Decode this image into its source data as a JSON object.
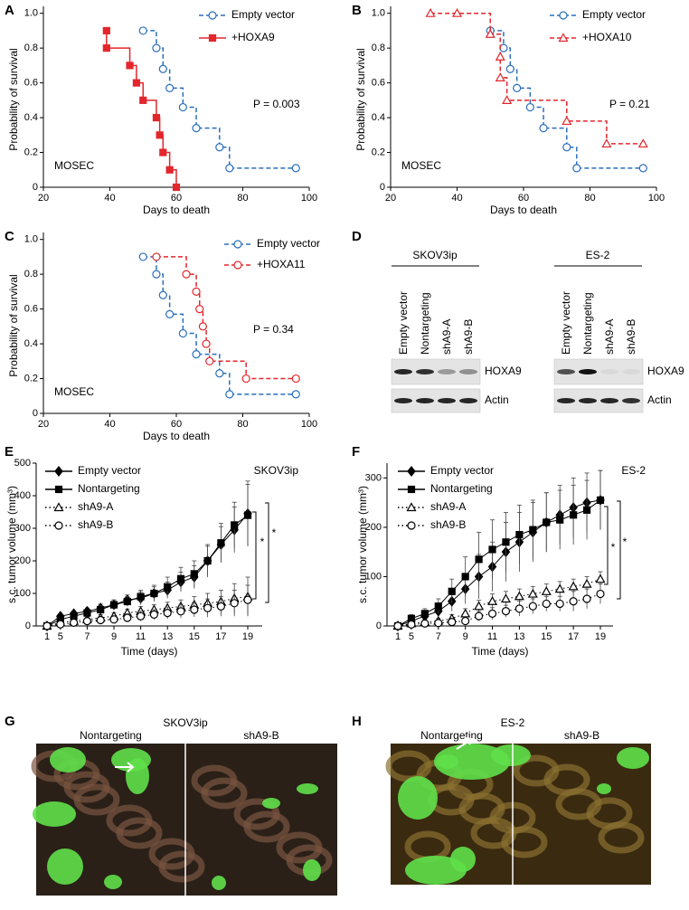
{
  "chart_data": [
    {
      "panel": "A",
      "type": "step",
      "xlabel": "Days to death",
      "ylabel": "Probability of survival",
      "xlim": [
        20,
        100
      ],
      "xticks": [
        20,
        40,
        60,
        80,
        100
      ],
      "ylim": [
        0,
        1.04
      ],
      "yticks": [
        0,
        0.2,
        0.4,
        0.6,
        0.8,
        {
          "value": 1,
          "label": "1.0"
        }
      ],
      "annotations": [
        "MOSEC",
        "P = 0.003"
      ],
      "series": [
        {
          "name": "Empty vector",
          "color": "#2a6ebb",
          "marker": "circle-open",
          "dash": "dashed",
          "x": [
            50,
            54,
            56,
            58,
            62,
            66,
            73,
            76,
            96
          ],
          "values": [
            0.9,
            0.8,
            0.68,
            0.57,
            0.46,
            0.34,
            0.23,
            0.11,
            0.11
          ]
        },
        {
          "name": "+HOXA9",
          "color": "#e3262c",
          "marker": "square",
          "dash": "solid",
          "x": [
            39,
            39,
            46,
            48,
            50,
            54,
            55,
            56,
            58,
            60
          ],
          "values": [
            0.9,
            0.8,
            0.7,
            0.6,
            0.5,
            0.4,
            0.3,
            0.2,
            0.1,
            0
          ]
        }
      ]
    },
    {
      "panel": "B",
      "type": "step",
      "xlabel": "Days to death",
      "ylabel": "Probability of survival",
      "xlim": [
        20,
        100
      ],
      "xticks": [
        20,
        40,
        60,
        80,
        100
      ],
      "ylim": [
        0,
        1.04
      ],
      "yticks": [
        0,
        0.2,
        0.4,
        0.6,
        0.8,
        {
          "value": 1,
          "label": "1.0"
        }
      ],
      "annotations": [
        "MOSEC",
        "P = 0.21"
      ],
      "series": [
        {
          "name": "Empty vector",
          "color": "#2a6ebb",
          "marker": "circle-open",
          "dash": "dashed",
          "x": [
            50,
            54,
            56,
            58,
            62,
            66,
            73,
            76,
            96
          ],
          "values": [
            0.9,
            0.8,
            0.68,
            0.57,
            0.46,
            0.34,
            0.23,
            0.11,
            0.11
          ]
        },
        {
          "name": "+HOXA10",
          "color": "#e3262c",
          "marker": "triangle-open",
          "dash": "dashed",
          "x": [
            32,
            40,
            50,
            53,
            53,
            55,
            73,
            85,
            96
          ],
          "values": [
            1,
            1,
            0.88,
            0.75,
            0.63,
            0.5,
            0.38,
            0.25,
            0.25
          ]
        }
      ]
    },
    {
      "panel": "C",
      "type": "step",
      "xlabel": "Days to death",
      "ylabel": "Probability of survival",
      "xlim": [
        20,
        100
      ],
      "xticks": [
        20,
        40,
        60,
        80,
        100
      ],
      "ylim": [
        0,
        1.04
      ],
      "yticks": [
        0,
        0.2,
        0.4,
        0.6,
        0.8,
        {
          "value": 1,
          "label": "1.0"
        }
      ],
      "annotations": [
        "MOSEC",
        "P = 0.34"
      ],
      "series": [
        {
          "name": "Empty vector",
          "color": "#2a6ebb",
          "marker": "circle-open",
          "dash": "dashed",
          "x": [
            50,
            54,
            56,
            58,
            62,
            66,
            73,
            76,
            96
          ],
          "values": [
            0.9,
            0.8,
            0.68,
            0.57,
            0.46,
            0.34,
            0.23,
            0.11,
            0.11
          ]
        },
        {
          "name": "+HOXA11",
          "color": "#e3262c",
          "marker": "circle-open",
          "dash": "dashed",
          "x": [
            54,
            63,
            66,
            67,
            68,
            69,
            70,
            81,
            96
          ],
          "values": [
            0.9,
            0.8,
            0.7,
            0.6,
            0.5,
            0.4,
            0.3,
            0.2,
            0.2
          ]
        }
      ]
    },
    {
      "panel": "E",
      "type": "line",
      "xlabel": "Time (days)",
      "ylabel": "s.c. tumor volume (mm³)",
      "categories": [
        "1",
        "5",
        null,
        "7",
        null,
        "9",
        null,
        "11",
        null,
        "13",
        null,
        "15",
        null,
        "17",
        null,
        "19"
      ],
      "ylim": [
        0,
        500
      ],
      "yticks": [
        0,
        100,
        200,
        300,
        400,
        500
      ],
      "annotations": [
        "SKOV3ip",
        "*",
        "*"
      ],
      "series": [
        {
          "name": "Empty vector",
          "color": "#000000",
          "marker": "diamond",
          "dash": "solid",
          "values": [
            0,
            30,
            38,
            45,
            55,
            65,
            80,
            85,
            100,
            110,
            135,
            150,
            200,
            250,
            295,
            345
          ],
          "errors": [
            0,
            8,
            8,
            10,
            12,
            15,
            15,
            20,
            20,
            25,
            30,
            35,
            45,
            55,
            70,
            100
          ]
        },
        {
          "name": "Nontargeting",
          "color": "#000000",
          "marker": "square",
          "dash": "solid",
          "values": [
            0,
            20,
            30,
            40,
            50,
            65,
            75,
            90,
            100,
            120,
            145,
            160,
            200,
            255,
            310,
            340
          ],
          "errors": [
            0,
            8,
            8,
            10,
            12,
            15,
            15,
            20,
            25,
            30,
            35,
            40,
            50,
            60,
            70,
            95
          ]
        },
        {
          "name": "shA9-A",
          "color": "#000000",
          "marker": "triangle-open",
          "dash": "dotted",
          "values": [
            0,
            10,
            15,
            20,
            25,
            30,
            40,
            45,
            50,
            55,
            60,
            65,
            70,
            75,
            85,
            90
          ],
          "errors": [
            0,
            5,
            5,
            8,
            10,
            10,
            12,
            15,
            15,
            18,
            20,
            25,
            30,
            35,
            45,
            60
          ]
        },
        {
          "name": "shA9-B",
          "color": "#000000",
          "marker": "circle-open",
          "dash": "dotted",
          "values": [
            0,
            5,
            10,
            15,
            18,
            20,
            25,
            30,
            35,
            40,
            45,
            50,
            55,
            60,
            70,
            80
          ],
          "errors": [
            0,
            3,
            5,
            5,
            8,
            10,
            12,
            15,
            15,
            18,
            20,
            22,
            28,
            30,
            40,
            45
          ]
        }
      ]
    },
    {
      "panel": "F",
      "type": "line",
      "xlabel": "Time (days)",
      "ylabel": "s.c. tumor volume (mm³)",
      "categories": [
        "1",
        "5",
        null,
        "7",
        null,
        "9",
        null,
        "11",
        null,
        "13",
        null,
        "15",
        null,
        "17",
        null,
        "19"
      ],
      "ylim": [
        0,
        330
      ],
      "yticks": [
        0,
        100,
        200,
        300
      ],
      "annotations": [
        "ES-2",
        "*",
        "*"
      ],
      "series": [
        {
          "name": "Empty vector",
          "color": "#000000",
          "marker": "diamond",
          "dash": "solid",
          "values": [
            0,
            10,
            20,
            30,
            50,
            75,
            100,
            120,
            150,
            170,
            190,
            210,
            225,
            240,
            250,
            255
          ],
          "errors": [
            0,
            8,
            10,
            12,
            20,
            30,
            45,
            50,
            60,
            60,
            60,
            60,
            60,
            60,
            60,
            60
          ]
        },
        {
          "name": "Nontargeting",
          "color": "#000000",
          "marker": "square",
          "dash": "solid",
          "values": [
            0,
            15,
            25,
            40,
            70,
            100,
            135,
            155,
            170,
            185,
            195,
            210,
            215,
            225,
            235,
            255
          ],
          "errors": [
            0,
            8,
            10,
            15,
            25,
            40,
            55,
            60,
            60,
            60,
            60,
            60,
            60,
            60,
            60,
            60
          ]
        },
        {
          "name": "shA9-A",
          "color": "#000000",
          "marker": "triangle-open",
          "dash": "dotted",
          "values": [
            0,
            5,
            8,
            10,
            15,
            25,
            40,
            50,
            55,
            60,
            65,
            70,
            75,
            80,
            85,
            95
          ],
          "errors": [
            0,
            5,
            5,
            5,
            8,
            10,
            12,
            15,
            15,
            15,
            15,
            15,
            15,
            15,
            15,
            15
          ]
        },
        {
          "name": "shA9-B",
          "color": "#000000",
          "marker": "circle-open",
          "dash": "dotted",
          "values": [
            0,
            3,
            5,
            6,
            8,
            10,
            20,
            25,
            30,
            35,
            40,
            45,
            45,
            50,
            55,
            65
          ],
          "errors": [
            0,
            3,
            3,
            3,
            5,
            8,
            10,
            12,
            12,
            15,
            15,
            15,
            15,
            20,
            20,
            20
          ]
        }
      ]
    }
  ],
  "blot": {
    "panel": "D",
    "groups": [
      {
        "cell_line": "SKOV3ip",
        "lanes": [
          "Empty vector",
          "Nontargeting",
          "shA9-A",
          "shA9-B"
        ],
        "bands": [
          "HOXA9",
          "Actin"
        ]
      },
      {
        "cell_line": "ES-2",
        "lanes": [
          "Empty vector",
          "Nontargeting",
          "shA9-A",
          "shA9-B"
        ],
        "bands": [
          "HOXA9",
          "Actin"
        ]
      }
    ]
  },
  "photos": [
    {
      "panel": "G",
      "title": "SKOV3ip",
      "left": "Nontargeting",
      "right": "shA9-B"
    },
    {
      "panel": "H",
      "title": "ES-2",
      "left": "Nontargeting",
      "right": "shA9-B"
    }
  ]
}
